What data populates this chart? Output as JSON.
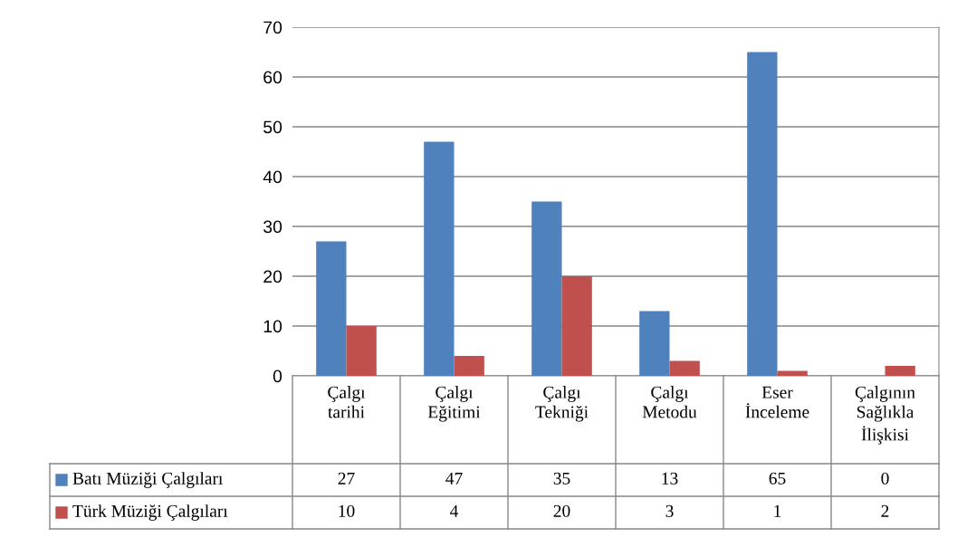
{
  "chart_data": {
    "type": "bar",
    "categories": [
      "Çalgı\ntarihi",
      "Çalgı\nEğitimi",
      "Çalgı\nTekniği",
      "Çalgı\nMetodu",
      "Eser\nİnceleme",
      "Çalgının\nSağlıkla\nİlişkisi"
    ],
    "series": [
      {
        "name": "Batı Müziği Çalgıları",
        "color": "#4f81bd",
        "values": [
          27,
          47,
          35,
          13,
          65,
          0
        ]
      },
      {
        "name": "Türk Müziği Çalgıları",
        "color": "#c0504d",
        "values": [
          10,
          4,
          20,
          3,
          1,
          2
        ]
      }
    ],
    "ylim": [
      0,
      70
    ],
    "yticks": [
      0,
      10,
      20,
      30,
      40,
      50,
      60,
      70
    ],
    "grid": "y",
    "legend": "bottom left",
    "data_labels": true
  }
}
